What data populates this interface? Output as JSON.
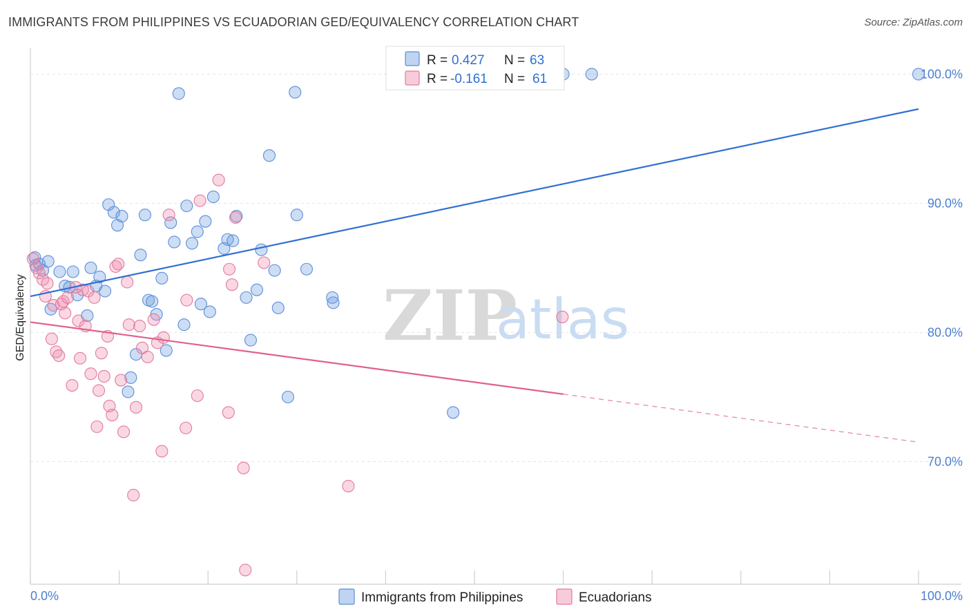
{
  "header": {
    "title": "IMMIGRANTS FROM PHILIPPINES VS ECUADORIAN GED/EQUIVALENCY CORRELATION CHART",
    "source": "Source: ZipAtlas.com"
  },
  "watermark": {
    "zip": "ZIP",
    "atlas": "atlas"
  },
  "legend": {
    "r_label": "R =",
    "n_label": "N =",
    "rows": [
      {
        "r": "0.427",
        "n": "63",
        "color": "#6f9fdf"
      },
      {
        "r": "-0.161",
        "n": "61",
        "color": "#ee8fae"
      }
    ]
  },
  "bottom_legend": [
    "Immigrants from Philippines",
    "Ecuadorians"
  ],
  "chart_data": {
    "type": "scatter",
    "ylabel": "GED/Equivalency",
    "xlim": [
      0,
      100
    ],
    "ylim": [
      60.5,
      102
    ],
    "x_tick_labels": [
      "0.0%",
      "100.0%"
    ],
    "y_ticks": [
      {
        "value": 70,
        "label": "70.0%"
      },
      {
        "value": 80,
        "label": "80.0%"
      },
      {
        "value": 90,
        "label": "90.0%"
      },
      {
        "value": 100,
        "label": "100.0%"
      }
    ],
    "grid": true,
    "series": [
      {
        "name": "Immigrants from Philippines",
        "color": "#6f9fdf",
        "stroke": "#5a8ed8",
        "trend": {
          "x0": 0,
          "y0": 82.8,
          "x1": 100,
          "y1": 97.3,
          "solid_to": 100,
          "color": "#2f6fd3"
        },
        "points": [
          [
            0.5,
            85.8
          ],
          [
            0.6,
            85.2
          ],
          [
            1.0,
            85.3
          ],
          [
            1.4,
            84.8
          ],
          [
            2.0,
            85.5
          ],
          [
            2.3,
            81.8
          ],
          [
            3.3,
            84.7
          ],
          [
            3.9,
            83.6
          ],
          [
            4.4,
            83.5
          ],
          [
            4.8,
            84.7
          ],
          [
            5.3,
            82.9
          ],
          [
            6.4,
            81.3
          ],
          [
            6.8,
            85.0
          ],
          [
            7.4,
            83.6
          ],
          [
            7.8,
            84.3
          ],
          [
            8.4,
            83.2
          ],
          [
            8.8,
            89.9
          ],
          [
            9.4,
            89.3
          ],
          [
            9.8,
            88.3
          ],
          [
            10.3,
            89.0
          ],
          [
            11.0,
            75.4
          ],
          [
            11.3,
            76.5
          ],
          [
            11.9,
            78.3
          ],
          [
            12.4,
            86.0
          ],
          [
            12.9,
            89.1
          ],
          [
            13.3,
            82.5
          ],
          [
            13.7,
            82.4
          ],
          [
            14.2,
            81.4
          ],
          [
            14.8,
            84.2
          ],
          [
            15.3,
            78.6
          ],
          [
            15.8,
            88.5
          ],
          [
            16.2,
            87.0
          ],
          [
            16.7,
            98.5
          ],
          [
            17.3,
            80.6
          ],
          [
            17.6,
            89.8
          ],
          [
            18.2,
            86.9
          ],
          [
            18.8,
            87.8
          ],
          [
            19.2,
            82.2
          ],
          [
            19.7,
            88.6
          ],
          [
            20.2,
            81.6
          ],
          [
            20.6,
            90.5
          ],
          [
            21.8,
            86.5
          ],
          [
            22.2,
            87.2
          ],
          [
            22.8,
            87.1
          ],
          [
            23.2,
            89.0
          ],
          [
            24.3,
            82.7
          ],
          [
            24.8,
            79.4
          ],
          [
            25.5,
            83.3
          ],
          [
            26.0,
            86.4
          ],
          [
            26.9,
            93.7
          ],
          [
            27.5,
            84.8
          ],
          [
            27.9,
            81.9
          ],
          [
            29.0,
            75.0
          ],
          [
            29.8,
            98.6
          ],
          [
            30.0,
            89.1
          ],
          [
            31.1,
            84.9
          ],
          [
            34.0,
            82.7
          ],
          [
            34.1,
            82.3
          ],
          [
            47.6,
            73.8
          ],
          [
            60.0,
            100.0
          ],
          [
            63.2,
            100.0
          ],
          [
            100.0,
            100.0
          ]
        ]
      },
      {
        "name": "Ecuadorians",
        "color": "#ee8fae",
        "stroke": "#e27a9d",
        "trend": {
          "x0": 0,
          "y0": 80.8,
          "x1": 100,
          "y1": 71.5,
          "solid_to": 60,
          "color": "#e0608c"
        },
        "points": [
          [
            0.3,
            85.7
          ],
          [
            0.7,
            85.0
          ],
          [
            1.0,
            84.6
          ],
          [
            1.4,
            84.1
          ],
          [
            1.7,
            82.8
          ],
          [
            1.9,
            83.8
          ],
          [
            2.4,
            79.5
          ],
          [
            2.6,
            82.1
          ],
          [
            2.9,
            78.5
          ],
          [
            3.2,
            78.2
          ],
          [
            3.5,
            82.2
          ],
          [
            3.7,
            82.4
          ],
          [
            3.9,
            81.5
          ],
          [
            4.2,
            82.7
          ],
          [
            4.7,
            75.9
          ],
          [
            5.1,
            83.5
          ],
          [
            5.4,
            80.9
          ],
          [
            5.6,
            78.0
          ],
          [
            5.9,
            83.3
          ],
          [
            6.2,
            80.5
          ],
          [
            6.5,
            83.2
          ],
          [
            6.8,
            76.8
          ],
          [
            7.2,
            82.7
          ],
          [
            7.5,
            72.7
          ],
          [
            7.7,
            75.5
          ],
          [
            8.0,
            78.4
          ],
          [
            8.3,
            76.6
          ],
          [
            8.7,
            79.7
          ],
          [
            8.9,
            74.3
          ],
          [
            9.2,
            73.6
          ],
          [
            9.6,
            85.1
          ],
          [
            9.9,
            85.3
          ],
          [
            10.2,
            76.3
          ],
          [
            10.5,
            72.3
          ],
          [
            10.9,
            83.9
          ],
          [
            11.1,
            80.6
          ],
          [
            11.6,
            67.4
          ],
          [
            11.9,
            74.2
          ],
          [
            12.3,
            80.5
          ],
          [
            12.6,
            78.8
          ],
          [
            13.2,
            78.1
          ],
          [
            13.9,
            81.0
          ],
          [
            14.3,
            79.2
          ],
          [
            14.8,
            70.8
          ],
          [
            15.0,
            79.6
          ],
          [
            15.6,
            89.1
          ],
          [
            17.5,
            72.6
          ],
          [
            17.6,
            82.5
          ],
          [
            18.8,
            75.1
          ],
          [
            19.1,
            90.2
          ],
          [
            21.2,
            91.8
          ],
          [
            22.3,
            73.8
          ],
          [
            22.4,
            84.9
          ],
          [
            22.7,
            83.7
          ],
          [
            23.1,
            88.9
          ],
          [
            24.0,
            69.5
          ],
          [
            24.2,
            61.6
          ],
          [
            26.3,
            85.4
          ],
          [
            35.8,
            68.1
          ],
          [
            59.9,
            81.2
          ]
        ]
      }
    ]
  }
}
